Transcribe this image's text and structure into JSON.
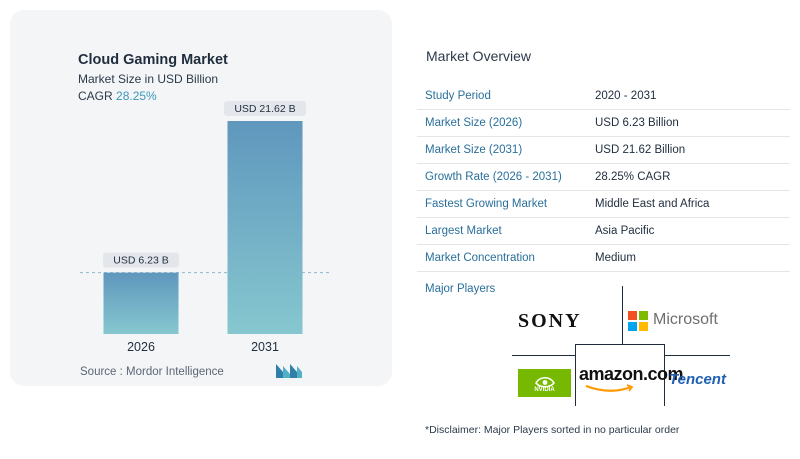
{
  "chart_data": {
    "type": "bar",
    "title": "Cloud Gaming Market",
    "subtitle": "Market Size in USD Billion",
    "cagr_label": "CAGR",
    "cagr_value": "28.25%",
    "categories": [
      "2026",
      "2031"
    ],
    "values": [
      6.23,
      21.62
    ],
    "value_labels": [
      "USD 6.23 B",
      "USD 21.62 B"
    ],
    "ylim": [
      0,
      21.62
    ],
    "grid": false,
    "colors": {
      "bar_top": "#5f97bd",
      "bar_bottom": "#86c7cf",
      "dashed_line": "#8fb6cc"
    }
  },
  "source": "Source :  Mordor Intelligence",
  "overview": {
    "title": "Market Overview",
    "rows": [
      {
        "key": "Study Period",
        "value": "2020 - 2031"
      },
      {
        "key": "Market Size (2026)",
        "value": "USD 6.23 Billion"
      },
      {
        "key": "Market Size (2031)",
        "value": "USD 21.62 Billion"
      },
      {
        "key": "Growth Rate (2026 - 2031)",
        "value": "28.25% CAGR"
      },
      {
        "key": "Fastest Growing Market",
        "value": "Middle East and Africa"
      },
      {
        "key": "Largest Market",
        "value": "Asia Pacific"
      },
      {
        "key": "Market Concentration",
        "value": "Medium"
      }
    ]
  },
  "major_players": {
    "title": "Major Players",
    "logos": {
      "sony": "SONY",
      "microsoft": "Microsoft",
      "nvidia": "NVIDIA",
      "amazon": "amazon.com",
      "tencent": "Tencent"
    }
  },
  "disclaimer": "*Disclaimer: Major Players sorted in no particular order"
}
